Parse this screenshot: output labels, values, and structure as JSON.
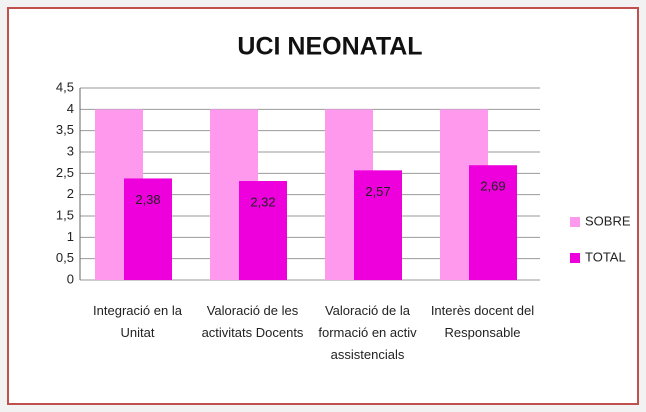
{
  "chart_data": {
    "type": "bar",
    "title": "UCI NEONATAL",
    "categories": [
      "Integració en la Unitat",
      "Valoració de les activitats Docents",
      "Valoració de la formació en activ assistencials",
      "Interès docent del Responsable"
    ],
    "series": [
      {
        "name": "SOBRE",
        "color": "#ff99ee",
        "values": [
          4,
          4,
          4,
          4
        ]
      },
      {
        "name": "TOTAL",
        "color": "#ee00dd",
        "values": [
          2.38,
          2.32,
          2.57,
          2.69
        ],
        "value_labels": [
          "2,38",
          "2,32",
          "2,57",
          "2,69"
        ]
      }
    ],
    "ylim": [
      0,
      4.5
    ],
    "yticks": [
      0,
      {
        "value": 0.5,
        "label": "0,5"
      },
      1,
      {
        "value": 1.5,
        "label": "1,5"
      },
      2,
      {
        "value": 2.5,
        "label": "2,5"
      },
      3,
      {
        "value": 3.5,
        "label": "3,5"
      },
      4,
      {
        "value": 4.5,
        "label": "4,5"
      }
    ],
    "grid": true,
    "legend": "right"
  }
}
